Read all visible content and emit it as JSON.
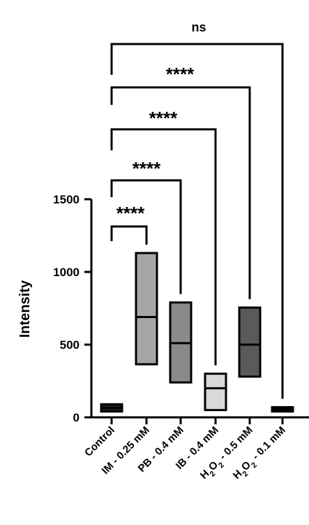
{
  "chart_data": {
    "type": "box",
    "title": "",
    "xlabel": "",
    "ylabel": "Intensity",
    "ylim": [
      0,
      1500
    ],
    "yticks": [
      0,
      500,
      1000,
      1500
    ],
    "categories": [
      {
        "label": "Control",
        "sub": ""
      },
      {
        "label": "IM - 0.25 mM",
        "sub": ""
      },
      {
        "label": "PB - 0.4 mM",
        "sub": ""
      },
      {
        "label": "IB - 0.4 mM",
        "sub": ""
      },
      {
        "label": "H2O2 - 0.5 mM",
        "sub": "2"
      },
      {
        "label": "H2O2 - 0.1 mM",
        "sub": "2"
      }
    ],
    "boxes": [
      {
        "min": 40,
        "median": 65,
        "max": 90,
        "fill": "#1c1c1c"
      },
      {
        "min": 365,
        "median": 690,
        "max": 1130,
        "fill": "#a6a6a6"
      },
      {
        "min": 240,
        "median": 510,
        "max": 790,
        "fill": "#8a8a8a"
      },
      {
        "min": 50,
        "median": 200,
        "max": 300,
        "fill": "#d9d9d9"
      },
      {
        "min": 280,
        "median": 500,
        "max": 755,
        "fill": "#5a5a5a"
      },
      {
        "min": 40,
        "median": 55,
        "max": 70,
        "fill": "#111111"
      }
    ],
    "comparisons": [
      {
        "to": 5,
        "label": "ns"
      },
      {
        "to": 4,
        "label": "****"
      },
      {
        "to": 3,
        "label": "****"
      },
      {
        "to": 2,
        "label": "****"
      },
      {
        "to": 1,
        "label": "****"
      }
    ]
  }
}
